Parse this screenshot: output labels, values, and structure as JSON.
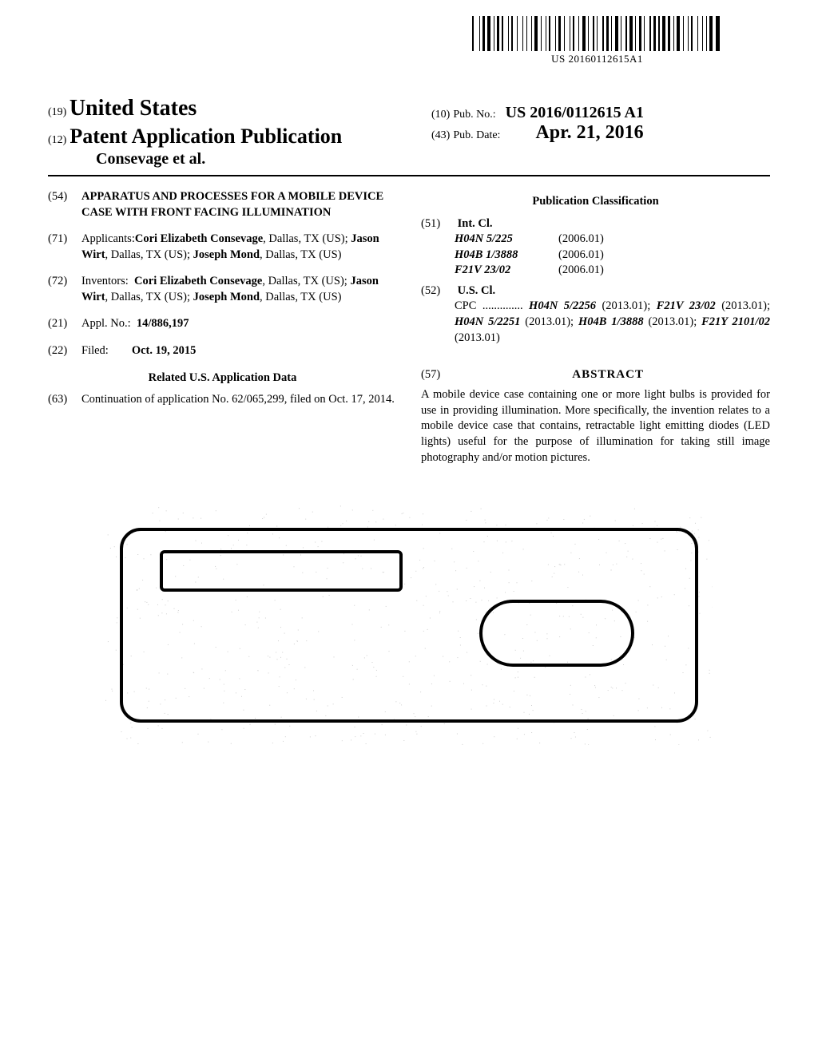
{
  "barcode": {
    "text": "US 20160112615A1",
    "widths": [
      2,
      5,
      1,
      1,
      3,
      1,
      4,
      2,
      1,
      1,
      3,
      1,
      2,
      4,
      1,
      1,
      2,
      3,
      1,
      4,
      1,
      2,
      1,
      3,
      1,
      1,
      4,
      2,
      1,
      3,
      1,
      1,
      2,
      4,
      1,
      1,
      3,
      2,
      1,
      4,
      1,
      1,
      2,
      3,
      1,
      2,
      4,
      1,
      1,
      3,
      2,
      1,
      1,
      4,
      2,
      1,
      3,
      1,
      1,
      2,
      4,
      1,
      1,
      3,
      2,
      1,
      4,
      1,
      1,
      2,
      3,
      1,
      1,
      4,
      2,
      1,
      3,
      1,
      2,
      1,
      4,
      1,
      3,
      2,
      1,
      1,
      4,
      2,
      1,
      3,
      1,
      1,
      2,
      4,
      1,
      3,
      1,
      2,
      1,
      1,
      4,
      2,
      5,
      2
    ]
  },
  "header": {
    "jurisdiction_num": "(19)",
    "jurisdiction": "United States",
    "pub_num12": "(12)",
    "pub_title": "Patent Application Publication",
    "authors": "Consevage et al.",
    "pubno_num": "(10)",
    "pubno_label": "Pub. No.:",
    "pubno": "US 2016/0112615 A1",
    "pubdate_num": "(43)",
    "pubdate_label": "Pub. Date:",
    "pubdate": "Apr. 21, 2016"
  },
  "left": {
    "title_num": "(54)",
    "title": "APPARATUS AND PROCESSES FOR A MOBILE DEVICE CASE WITH FRONT FACING ILLUMINATION",
    "applicants_num": "(71)",
    "applicants_label": "Applicants:",
    "applicants": "Cori Elizabeth Consevage, Dallas, TX (US); Jason Wirt, Dallas, TX (US); Joseph Mond, Dallas, TX (US)",
    "inventors_num": "(72)",
    "inventors_label": "Inventors:",
    "inventors": "Cori Elizabeth Consevage, Dallas, TX (US); Jason Wirt, Dallas, TX (US); Joseph Mond, Dallas, TX (US)",
    "applno_num": "(21)",
    "applno_label": "Appl. No.:",
    "applno": "14/886,197",
    "filed_num": "(22)",
    "filed_label": "Filed:",
    "filed": "Oct. 19, 2015",
    "related_title": "Related U.S. Application Data",
    "continuation_num": "(63)",
    "continuation": "Continuation of application No. 62/065,299, filed on Oct. 17, 2014."
  },
  "right": {
    "classification_title": "Publication Classification",
    "intcl_num": "(51)",
    "intcl_label": "Int. Cl.",
    "intcl": [
      {
        "code": "H04N 5/225",
        "year": "(2006.01)"
      },
      {
        "code": "H04B 1/3888",
        "year": "(2006.01)"
      },
      {
        "code": "F21V 23/02",
        "year": "(2006.01)"
      }
    ],
    "uscl_num": "(52)",
    "uscl_label": "U.S. Cl.",
    "cpc_label": "CPC ..............",
    "cpc": "H04N 5/2256 (2013.01); F21V 23/02 (2013.01); H04N 5/2251 (2013.01); H04B 1/3888 (2013.01); F21Y 2101/02 (2013.01)",
    "abstract_num": "(57)",
    "abstract_label": "ABSTRACT",
    "abstract": "A mobile device case containing one or more light bulbs is provided for use in providing illumination. More specifically, the invention relates to a mobile device case that contains, retractable light emitting diodes (LED lights) useful for the purpose of illumination for taking still image photography and/or motion pictures."
  },
  "figure": {
    "stroke": "#000000",
    "stroke_width": 4,
    "noise_color": "#cfcfcf"
  }
}
